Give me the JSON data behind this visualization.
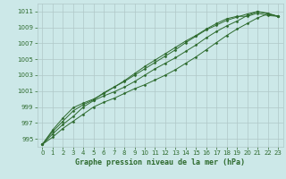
{
  "x": [
    0,
    1,
    2,
    3,
    4,
    5,
    6,
    7,
    8,
    9,
    10,
    11,
    12,
    13,
    14,
    15,
    16,
    17,
    18,
    19,
    20,
    21,
    22,
    23
  ],
  "line1": [
    994.3,
    995.2,
    996.3,
    997.2,
    998.1,
    999.0,
    999.6,
    1000.1,
    1000.7,
    1001.3,
    1001.8,
    1002.4,
    1003.0,
    1003.7,
    1004.5,
    1005.3,
    1006.2,
    1007.1,
    1008.0,
    1008.8,
    1009.5,
    1010.2,
    1010.7,
    1010.4
  ],
  "line2": [
    994.3,
    995.6,
    996.8,
    997.8,
    999.0,
    999.8,
    1000.4,
    1000.9,
    1001.5,
    1002.2,
    1003.0,
    1003.8,
    1004.5,
    1005.2,
    1006.0,
    1006.8,
    1007.7,
    1008.5,
    1009.2,
    1009.8,
    1010.5,
    1011.0,
    1010.8,
    1010.4
  ],
  "line3": [
    994.3,
    995.9,
    997.2,
    998.5,
    999.3,
    999.9,
    1000.8,
    1001.5,
    1002.2,
    1003.0,
    1003.8,
    1004.6,
    1005.4,
    1006.2,
    1007.1,
    1007.9,
    1008.7,
    1009.3,
    1009.9,
    1010.3,
    1010.7,
    1011.0,
    1010.7,
    1010.4
  ],
  "line4": [
    994.3,
    996.1,
    997.6,
    998.9,
    999.5,
    1000.0,
    1000.7,
    1001.5,
    1002.3,
    1003.2,
    1004.1,
    1004.9,
    1005.7,
    1006.5,
    1007.3,
    1008.0,
    1008.8,
    1009.5,
    1010.1,
    1010.4,
    1010.4,
    1010.8,
    1010.5,
    1010.4
  ],
  "line_color": "#2d6a2d",
  "bg_color": "#cce8e8",
  "grid_color": "#b0c8c8",
  "xlabel": "Graphe pression niveau de la mer (hPa)",
  "ylim": [
    994.0,
    1012.0
  ],
  "xlim": [
    -0.5,
    23.5
  ],
  "yticks": [
    995,
    997,
    999,
    1001,
    1003,
    1005,
    1007,
    1009,
    1011
  ],
  "xticks": [
    0,
    1,
    2,
    3,
    4,
    5,
    6,
    7,
    8,
    9,
    10,
    11,
    12,
    13,
    14,
    15,
    16,
    17,
    18,
    19,
    20,
    21,
    22,
    23
  ],
  "marker": "D",
  "marker_size": 1.5,
  "line_width": 0.7,
  "tick_fontsize": 5.0,
  "xlabel_fontsize": 6.0
}
